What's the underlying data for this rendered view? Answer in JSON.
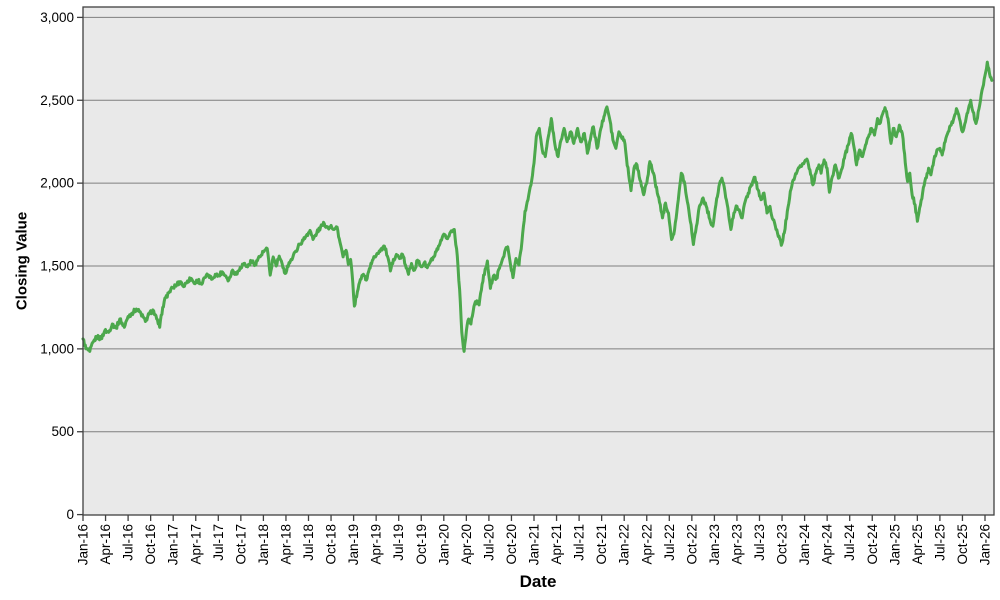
{
  "colors": {
    "line_green": "#4CA84C",
    "plot_background": "#E9E9E9",
    "gridline": "#7F7F7F",
    "plot_border": "#404040",
    "page_background": "#FFFFFF",
    "text": "#000000"
  },
  "chart_data": {
    "type": "line",
    "title": "",
    "xlabel": "Date",
    "ylabel": "Closing Value",
    "grid": "horizontal",
    "legend": "none",
    "x_axis": {
      "unit": "months since Jan-2016",
      "tick_labels": [
        "Jan-16",
        "Apr-16",
        "Jul-16",
        "Oct-16",
        "Jan-17",
        "Apr-17",
        "Jul-17",
        "Oct-17",
        "Jan-18",
        "Apr-18",
        "Jul-18",
        "Oct-18",
        "Jan-19",
        "Apr-19",
        "Jul-19",
        "Oct-19",
        "Jan-20",
        "Apr-20",
        "Jul-20",
        "Oct-20",
        "Jan-21",
        "Apr-21",
        "Jul-21",
        "Oct-21",
        "Jan-22",
        "Apr-22",
        "Jul-22",
        "Oct-22",
        "Jan-23",
        "Apr-23",
        "Jul-23",
        "Oct-23",
        "Jan-24",
        "Apr-24",
        "Jul-24",
        "Oct-24",
        "Jan-25",
        "Apr-25",
        "Jul-25",
        "Oct-25",
        "Jan-26"
      ],
      "tick_positions_months": [
        0,
        3,
        6,
        9,
        12,
        15,
        18,
        21,
        24,
        27,
        30,
        33,
        36,
        39,
        42,
        45,
        48,
        51,
        54,
        57,
        60,
        63,
        66,
        69,
        72,
        75,
        78,
        81,
        84,
        87,
        90,
        93,
        96,
        99,
        102,
        105,
        108,
        111,
        114,
        117,
        120
      ],
      "range_months": [
        0,
        121.2
      ]
    },
    "y_axis": {
      "ticks": [
        0,
        500,
        1000,
        1500,
        2000,
        2500,
        3000
      ],
      "tick_labels": [
        "0",
        "500",
        "1,000",
        "1,500",
        "2,000",
        "2,500",
        "3,000"
      ],
      "range": [
        0,
        3060
      ]
    },
    "line_style": {
      "width": 3,
      "daily_noise_amplitude": 13
    },
    "series": [
      {
        "name": "Closing Value",
        "color": "#4CA84C",
        "points": [
          [
            0,
            1060
          ],
          [
            0.4,
            1000
          ],
          [
            0.9,
            985
          ],
          [
            1.4,
            1045
          ],
          [
            1.9,
            1075
          ],
          [
            2.4,
            1060
          ],
          [
            2.9,
            1110
          ],
          [
            3.4,
            1100
          ],
          [
            3.9,
            1150
          ],
          [
            4.4,
            1125
          ],
          [
            4.9,
            1180
          ],
          [
            5.5,
            1130
          ],
          [
            6,
            1195
          ],
          [
            6.5,
            1215
          ],
          [
            7.1,
            1240
          ],
          [
            7.7,
            1215
          ],
          [
            8.3,
            1165
          ],
          [
            8.8,
            1210
          ],
          [
            9.3,
            1235
          ],
          [
            9.8,
            1180
          ],
          [
            10.2,
            1130
          ],
          [
            10.6,
            1250
          ],
          [
            11,
            1310
          ],
          [
            11.5,
            1345
          ],
          [
            12,
            1370
          ],
          [
            12.5,
            1390
          ],
          [
            13,
            1405
          ],
          [
            13.4,
            1375
          ],
          [
            13.9,
            1410
          ],
          [
            14.4,
            1425
          ],
          [
            14.8,
            1395
          ],
          [
            15.3,
            1415
          ],
          [
            15.8,
            1390
          ],
          [
            16.2,
            1430
          ],
          [
            16.7,
            1445
          ],
          [
            17.1,
            1420
          ],
          [
            17.6,
            1450
          ],
          [
            18,
            1440
          ],
          [
            18.5,
            1465
          ],
          [
            19,
            1440
          ],
          [
            19.4,
            1415
          ],
          [
            19.9,
            1475
          ],
          [
            20.4,
            1450
          ],
          [
            20.9,
            1490
          ],
          [
            21.4,
            1515
          ],
          [
            21.9,
            1495
          ],
          [
            22.4,
            1530
          ],
          [
            22.9,
            1510
          ],
          [
            23.3,
            1545
          ],
          [
            23.7,
            1565
          ],
          [
            24.1,
            1590
          ],
          [
            24.5,
            1605
          ],
          [
            24.9,
            1445
          ],
          [
            25.3,
            1555
          ],
          [
            25.7,
            1500
          ],
          [
            26.1,
            1560
          ],
          [
            26.6,
            1490
          ],
          [
            26.9,
            1455
          ],
          [
            27.4,
            1520
          ],
          [
            27.9,
            1550
          ],
          [
            28.3,
            1590
          ],
          [
            28.8,
            1630
          ],
          [
            29.3,
            1655
          ],
          [
            29.8,
            1690
          ],
          [
            30.2,
            1715
          ],
          [
            30.6,
            1660
          ],
          [
            31.1,
            1700
          ],
          [
            31.6,
            1735
          ],
          [
            32.1,
            1755
          ],
          [
            32.6,
            1730
          ],
          [
            33,
            1745
          ],
          [
            33.4,
            1720
          ],
          [
            33.8,
            1735
          ],
          [
            34.2,
            1640
          ],
          [
            34.6,
            1555
          ],
          [
            35,
            1595
          ],
          [
            35.3,
            1510
          ],
          [
            35.6,
            1540
          ],
          [
            35.9,
            1400
          ],
          [
            36.1,
            1258
          ],
          [
            36.5,
            1345
          ],
          [
            36.9,
            1420
          ],
          [
            37.3,
            1450
          ],
          [
            37.7,
            1415
          ],
          [
            38.1,
            1485
          ],
          [
            38.6,
            1540
          ],
          [
            39.1,
            1575
          ],
          [
            39.6,
            1600
          ],
          [
            40.1,
            1620
          ],
          [
            40.5,
            1560
          ],
          [
            40.9,
            1470
          ],
          [
            41.3,
            1540
          ],
          [
            41.7,
            1570
          ],
          [
            42.1,
            1545
          ],
          [
            42.5,
            1570
          ],
          [
            42.9,
            1505
          ],
          [
            43.3,
            1450
          ],
          [
            43.7,
            1515
          ],
          [
            44.1,
            1475
          ],
          [
            44.5,
            1535
          ],
          [
            45,
            1495
          ],
          [
            45.4,
            1520
          ],
          [
            45.8,
            1490
          ],
          [
            46.2,
            1525
          ],
          [
            46.7,
            1555
          ],
          [
            47.2,
            1600
          ],
          [
            47.7,
            1655
          ],
          [
            48.1,
            1690
          ],
          [
            48.5,
            1665
          ],
          [
            48.9,
            1705
          ],
          [
            49.4,
            1720
          ],
          [
            49.8,
            1560
          ],
          [
            50.1,
            1360
          ],
          [
            50.4,
            1100
          ],
          [
            50.7,
            985
          ],
          [
            51,
            1110
          ],
          [
            51.3,
            1180
          ],
          [
            51.6,
            1150
          ],
          [
            52,
            1255
          ],
          [
            52.4,
            1290
          ],
          [
            52.7,
            1265
          ],
          [
            53.1,
            1390
          ],
          [
            53.5,
            1480
          ],
          [
            53.8,
            1530
          ],
          [
            54.2,
            1365
          ],
          [
            54.6,
            1440
          ],
          [
            55,
            1425
          ],
          [
            55.4,
            1485
          ],
          [
            55.8,
            1540
          ],
          [
            56.2,
            1600
          ],
          [
            56.5,
            1615
          ],
          [
            56.9,
            1500
          ],
          [
            57.2,
            1430
          ],
          [
            57.6,
            1545
          ],
          [
            58,
            1505
          ],
          [
            58.4,
            1650
          ],
          [
            58.8,
            1830
          ],
          [
            59.2,
            1900
          ],
          [
            59.6,
            1990
          ],
          [
            60,
            2120
          ],
          [
            60.3,
            2280
          ],
          [
            60.7,
            2330
          ],
          [
            61.2,
            2180
          ],
          [
            61.5,
            2160
          ],
          [
            62,
            2300
          ],
          [
            62.3,
            2390
          ],
          [
            62.8,
            2230
          ],
          [
            63.2,
            2160
          ],
          [
            63.6,
            2260
          ],
          [
            64,
            2330
          ],
          [
            64.4,
            2250
          ],
          [
            64.9,
            2310
          ],
          [
            65.3,
            2240
          ],
          [
            65.8,
            2330
          ],
          [
            66.2,
            2250
          ],
          [
            66.7,
            2300
          ],
          [
            67.1,
            2180
          ],
          [
            67.6,
            2290
          ],
          [
            67.9,
            2340
          ],
          [
            68.4,
            2210
          ],
          [
            68.9,
            2330
          ],
          [
            69.3,
            2400
          ],
          [
            69.7,
            2460
          ],
          [
            70.1,
            2380
          ],
          [
            70.5,
            2260
          ],
          [
            70.9,
            2210
          ],
          [
            71.3,
            2310
          ],
          [
            71.6,
            2280
          ],
          [
            72,
            2260
          ],
          [
            72.3,
            2150
          ],
          [
            72.6,
            2050
          ],
          [
            72.9,
            1955
          ],
          [
            73.3,
            2090
          ],
          [
            73.7,
            2110
          ],
          [
            74.2,
            2010
          ],
          [
            74.6,
            1930
          ],
          [
            75,
            2000
          ],
          [
            75.4,
            2130
          ],
          [
            75.9,
            2060
          ],
          [
            76.4,
            1940
          ],
          [
            76.8,
            1870
          ],
          [
            77.1,
            1790
          ],
          [
            77.5,
            1880
          ],
          [
            77.9,
            1820
          ],
          [
            78.3,
            1660
          ],
          [
            78.7,
            1720
          ],
          [
            79.2,
            1900
          ],
          [
            79.6,
            2060
          ],
          [
            80,
            2010
          ],
          [
            80.4,
            1890
          ],
          [
            80.9,
            1750
          ],
          [
            81.2,
            1630
          ],
          [
            81.6,
            1740
          ],
          [
            82,
            1860
          ],
          [
            82.5,
            1910
          ],
          [
            83,
            1850
          ],
          [
            83.4,
            1780
          ],
          [
            83.8,
            1740
          ],
          [
            84.2,
            1870
          ],
          [
            84.7,
            2000
          ],
          [
            85,
            2030
          ],
          [
            85.4,
            1950
          ],
          [
            85.8,
            1850
          ],
          [
            86.2,
            1720
          ],
          [
            86.6,
            1820
          ],
          [
            87,
            1860
          ],
          [
            87.3,
            1840
          ],
          [
            87.7,
            1790
          ],
          [
            88.1,
            1890
          ],
          [
            88.5,
            1940
          ],
          [
            88.9,
            1990
          ],
          [
            89.4,
            2035
          ],
          [
            89.8,
            1960
          ],
          [
            90.2,
            1900
          ],
          [
            90.6,
            1940
          ],
          [
            91,
            1820
          ],
          [
            91.4,
            1860
          ],
          [
            91.8,
            1780
          ],
          [
            92.2,
            1720
          ],
          [
            92.6,
            1680
          ],
          [
            92.9,
            1625
          ],
          [
            93.3,
            1700
          ],
          [
            93.7,
            1830
          ],
          [
            94.1,
            1950
          ],
          [
            94.5,
            2020
          ],
          [
            95,
            2070
          ],
          [
            95.5,
            2100
          ],
          [
            96,
            2130
          ],
          [
            96.3,
            2145
          ],
          [
            96.7,
            2080
          ],
          [
            97.1,
            1990
          ],
          [
            97.5,
            2060
          ],
          [
            97.9,
            2110
          ],
          [
            98.2,
            2060
          ],
          [
            98.6,
            2140
          ],
          [
            99,
            2090
          ],
          [
            99.3,
            1945
          ],
          [
            99.7,
            2040
          ],
          [
            100.1,
            2110
          ],
          [
            100.5,
            2030
          ],
          [
            100.9,
            2080
          ],
          [
            101.3,
            2150
          ],
          [
            101.8,
            2230
          ],
          [
            102.2,
            2300
          ],
          [
            102.6,
            2210
          ],
          [
            102.9,
            2110
          ],
          [
            103.3,
            2200
          ],
          [
            103.7,
            2160
          ],
          [
            104.1,
            2230
          ],
          [
            104.5,
            2280
          ],
          [
            104.9,
            2330
          ],
          [
            105.3,
            2290
          ],
          [
            105.7,
            2390
          ],
          [
            106,
            2360
          ],
          [
            106.4,
            2420
          ],
          [
            106.7,
            2455
          ],
          [
            107.1,
            2390
          ],
          [
            107.5,
            2240
          ],
          [
            107.8,
            2330
          ],
          [
            108.2,
            2280
          ],
          [
            108.6,
            2350
          ],
          [
            109,
            2300
          ],
          [
            109.4,
            2120
          ],
          [
            109.7,
            2010
          ],
          [
            110,
            2060
          ],
          [
            110.3,
            1930
          ],
          [
            110.7,
            1870
          ],
          [
            111,
            1770
          ],
          [
            111.3,
            1850
          ],
          [
            111.7,
            1940
          ],
          [
            112.1,
            2030
          ],
          [
            112.5,
            2090
          ],
          [
            112.8,
            2050
          ],
          [
            113.2,
            2140
          ],
          [
            113.6,
            2200
          ],
          [
            114,
            2210
          ],
          [
            114.3,
            2170
          ],
          [
            114.7,
            2250
          ],
          [
            115.1,
            2310
          ],
          [
            115.5,
            2350
          ],
          [
            115.9,
            2400
          ],
          [
            116.2,
            2450
          ],
          [
            116.6,
            2390
          ],
          [
            117,
            2310
          ],
          [
            117.4,
            2370
          ],
          [
            117.8,
            2450
          ],
          [
            118.1,
            2500
          ],
          [
            118.4,
            2430
          ],
          [
            118.8,
            2360
          ],
          [
            119.2,
            2450
          ],
          [
            119.6,
            2560
          ],
          [
            120,
            2650
          ],
          [
            120.3,
            2730
          ],
          [
            120.6,
            2660
          ],
          [
            120.9,
            2620
          ]
        ]
      }
    ]
  }
}
